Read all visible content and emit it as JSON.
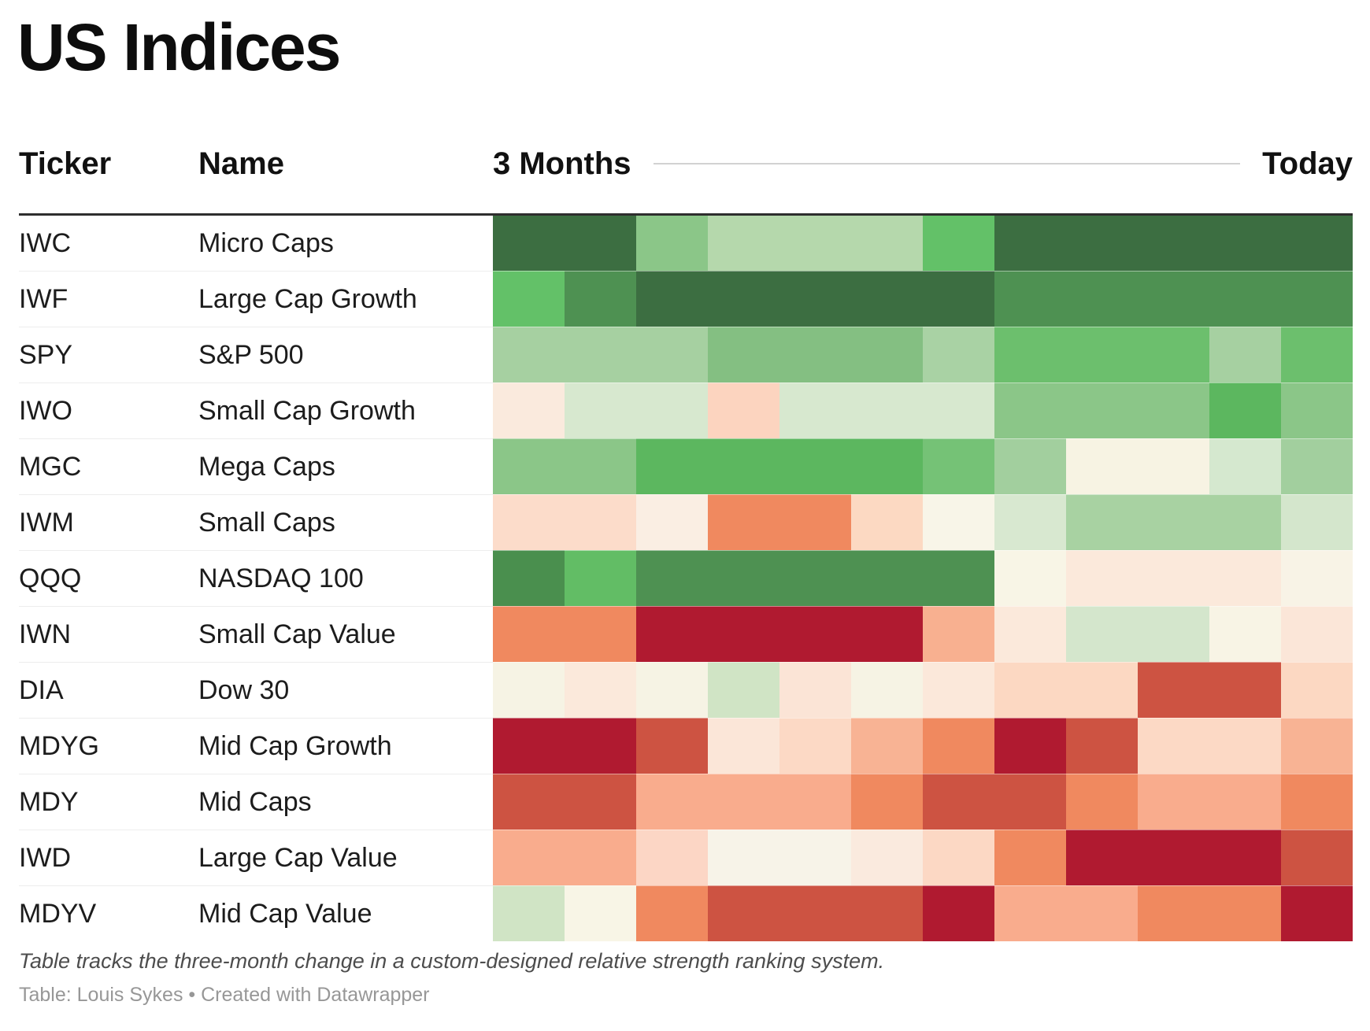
{
  "title": "US Indices",
  "footnote": "Table tracks the three-month change in a custom-designed relative strength ranking system.",
  "credit": "Table: Louis Sykes • Created with Datawrapper",
  "chart_data": {
    "type": "heatmap",
    "title": "US Indices",
    "columns": {
      "ticker": "Ticker",
      "name": "Name",
      "start": "3 Months",
      "end": "Today"
    },
    "time_axis": {
      "start_label": "3 Months",
      "end_label": "Today",
      "n_periods": 12
    },
    "legend": "none (color encodes relative strength: dark green = strongest, dark red = weakest)",
    "palette_hint": {
      "strong_positive": "#3c6e41",
      "positive": "#5cb75f",
      "neutral": "#f7f4e6",
      "negative": "#f0895f",
      "strong_negative": "#b01a30"
    },
    "rows": [
      {
        "ticker": "IWC",
        "name": "Micro Caps",
        "cells": [
          "#3c6e41",
          "#3c6e41",
          "#8bc688",
          "#b5d8ac",
          "#b5d8ac",
          "#b5d8ac",
          "#63c168",
          "#3c6e41",
          "#3c6e41",
          "#3c6e41",
          "#3c6e41",
          "#3c6e41"
        ]
      },
      {
        "ticker": "IWF",
        "name": "Large Cap Growth",
        "cells": [
          "#63c168",
          "#4e9152",
          "#3c6e41",
          "#3c6e41",
          "#3c6e41",
          "#3c6e41",
          "#3c6e41",
          "#4e9152",
          "#4e9152",
          "#4e9152",
          "#4e9152",
          "#4e9152"
        ]
      },
      {
        "ticker": "SPY",
        "name": "S&P 500",
        "cells": [
          "#a6d0a1",
          "#a6d0a1",
          "#a6d0a1",
          "#84bf82",
          "#84bf82",
          "#84bf82",
          "#a9d2a4",
          "#6cbf6d",
          "#6cbf6d",
          "#6cbf6d",
          "#a6d0a1",
          "#6cbf6d"
        ]
      },
      {
        "ticker": "IWO",
        "name": "Small Cap Growth",
        "cells": [
          "#faeadd",
          "#d7e8cf",
          "#d7e8cf",
          "#fcd4bf",
          "#d7e8cf",
          "#d7e8cf",
          "#d7e8cf",
          "#8bc688",
          "#8bc688",
          "#8bc688",
          "#5cb75f",
          "#8bc688"
        ]
      },
      {
        "ticker": "MGC",
        "name": "Mega Caps",
        "cells": [
          "#8bc688",
          "#8bc688",
          "#5cb75f",
          "#5cb75f",
          "#5cb75f",
          "#5cb75f",
          "#75c276",
          "#a2cf9e",
          "#f7f3e3",
          "#f7f3e3",
          "#d5e8cf",
          "#a2cf9e"
        ]
      },
      {
        "ticker": "IWM",
        "name": "Small Caps",
        "cells": [
          "#fcdcca",
          "#fcdcca",
          "#faeee3",
          "#f0895f",
          "#f0895f",
          "#fcd9c2",
          "#f8f5e8",
          "#d8e8d0",
          "#a8d2a2",
          "#a8d2a2",
          "#a8d2a2",
          "#d4e6cc"
        ]
      },
      {
        "ticker": "QQQ",
        "name": "NASDAQ 100",
        "cells": [
          "#4a8f4e",
          "#62bd65",
          "#4e9152",
          "#4e9152",
          "#4e9152",
          "#4e9152",
          "#4e9152",
          "#f8f5e6",
          "#fbe9db",
          "#fbe9db",
          "#fbe9db",
          "#f8f3e6"
        ]
      },
      {
        "ticker": "IWN",
        "name": "Small Cap Value",
        "cells": [
          "#f0895f",
          "#f0895f",
          "#b01a30",
          "#b01a30",
          "#b01a30",
          "#b01a30",
          "#f8b090",
          "#fbe9db",
          "#d4e6cc",
          "#d4e6cc",
          "#f8f4e5",
          "#fbe6d8"
        ]
      },
      {
        "ticker": "DIA",
        "name": "Dow 30",
        "cells": [
          "#f6f3e4",
          "#fbe9db",
          "#f6f3e4",
          "#d0e4c5",
          "#fbe4d6",
          "#f6f3e4",
          "#fbe8da",
          "#fcd8c2",
          "#fcd8c2",
          "#cd5342",
          "#cd5342",
          "#fcd8c2"
        ]
      },
      {
        "ticker": "MDYG",
        "name": "Mid Cap Growth",
        "cells": [
          "#b01a30",
          "#b01a30",
          "#cd5342",
          "#fbe6d8",
          "#fcd9c5",
          "#f8b394",
          "#f0895f",
          "#b01a30",
          "#cd5342",
          "#fcd9c5",
          "#fcd9c5",
          "#f8b394"
        ]
      },
      {
        "ticker": "MDY",
        "name": "Mid Caps",
        "cells": [
          "#cd5342",
          "#cd5342",
          "#f9ac8d",
          "#f9ac8d",
          "#f9ac8d",
          "#f0895f",
          "#cd5342",
          "#cd5342",
          "#f0895f",
          "#f9ac8d",
          "#f9ac8d",
          "#f0895f"
        ]
      },
      {
        "ticker": "IWD",
        "name": "Large Cap Value",
        "cells": [
          "#f9ac8d",
          "#f9ac8d",
          "#fcd6c5",
          "#f7f3e8",
          "#f7f3e8",
          "#faeade",
          "#fcd8c4",
          "#f0895f",
          "#b01a30",
          "#b01a30",
          "#b01a30",
          "#cd5342"
        ]
      },
      {
        "ticker": "MDYV",
        "name": "Mid Cap Value",
        "cells": [
          "#d0e4c5",
          "#f8f5e6",
          "#f0895f",
          "#cd5342",
          "#cd5342",
          "#cd5342",
          "#b01a30",
          "#f9ac8d",
          "#f9ac8d",
          "#f0895f",
          "#f0895f",
          "#b01a30"
        ]
      }
    ]
  }
}
